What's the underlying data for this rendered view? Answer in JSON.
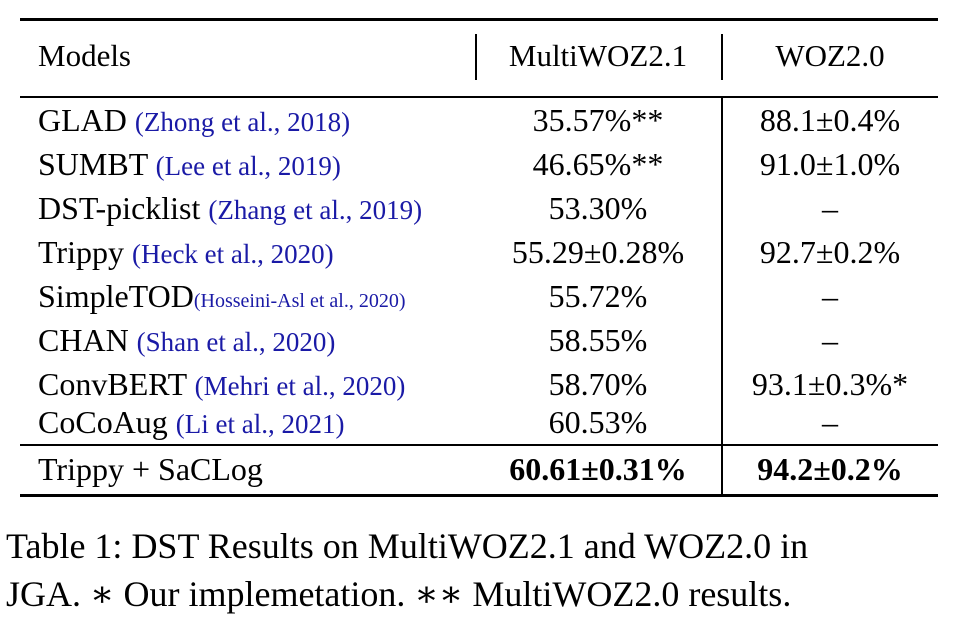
{
  "table": {
    "headers": [
      "Models",
      "MultiWOZ2.1",
      "WOZ2.0"
    ],
    "rows": [
      {
        "model": "GLAD",
        "citation": "(Zhong et al., 2018)",
        "multiwoz": "35.57%**",
        "woz": "88.1±0.4%"
      },
      {
        "model": "SUMBT",
        "citation": "(Lee et al., 2019)",
        "multiwoz": "46.65%**",
        "woz": "91.0±1.0%"
      },
      {
        "model": "DST-picklist",
        "citation": "(Zhang et al., 2019)",
        "multiwoz": "53.30%",
        "woz": "–"
      },
      {
        "model": "Trippy",
        "citation": "(Heck et al., 2020)",
        "multiwoz": "55.29±0.28%",
        "woz": "92.7±0.2%"
      },
      {
        "model": "SimpleTOD",
        "citation": "(Hosseini-Asl et al., 2020)",
        "multiwoz": "55.72%",
        "woz": "–"
      },
      {
        "model": "CHAN",
        "citation": "(Shan et al., 2020)",
        "multiwoz": "58.55%",
        "woz": "–"
      },
      {
        "model": "ConvBERT",
        "citation": "(Mehri et al., 2020)",
        "multiwoz": "58.70%",
        "woz": "93.1±0.3%*"
      },
      {
        "model": "CoCoAug",
        "citation": "(Li et al., 2021)",
        "multiwoz": "60.53%",
        "woz": "–"
      }
    ],
    "final_row": {
      "model": "Trippy + SaCLog",
      "multiwoz": "60.61±0.31%",
      "woz": "94.2±0.2%"
    }
  },
  "caption": {
    "line1": "Table 1: DST Results on MultiWOZ2.1 and WOZ2.0 in",
    "line2": "JGA. ∗ Our implemetation. ∗∗ MultiWOZ2.0 results."
  }
}
